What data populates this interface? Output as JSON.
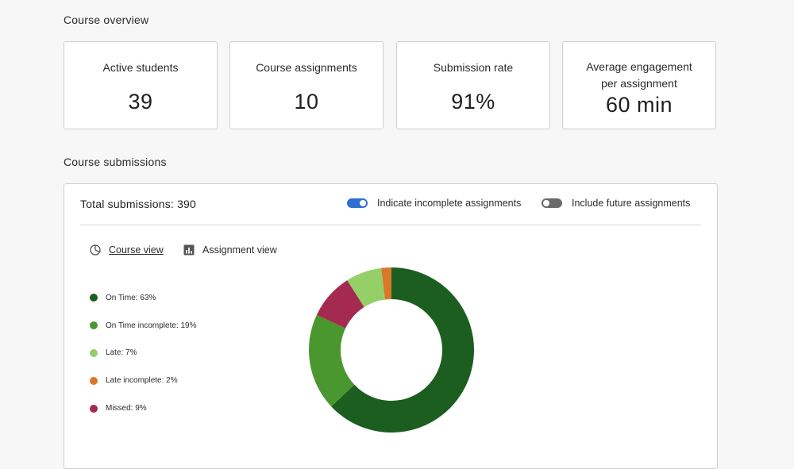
{
  "overview": {
    "title": "Course overview",
    "cards": [
      {
        "label": "Active students",
        "value": "39"
      },
      {
        "label": "Course assignments",
        "value": "10"
      },
      {
        "label": "Submission rate",
        "value": "91%"
      },
      {
        "label_line1": "Average engagement",
        "label_line2": "per assignment",
        "value": "60 min"
      }
    ]
  },
  "submissions": {
    "title": "Course submissions",
    "total": "Total submissions: 390",
    "toggles": [
      {
        "label": "Indicate incomplete assignments",
        "state": "on"
      },
      {
        "label": "Include future assignments",
        "state": "off"
      }
    ],
    "views": [
      {
        "label": "Course view",
        "icon": "pie-chart-icon",
        "active": true
      },
      {
        "label": "Assignment view",
        "icon": "bar-chart-icon",
        "active": false
      }
    ],
    "legend": [
      {
        "label": "On Time: 63%"
      },
      {
        "label": "On Time incomplete: 19%"
      },
      {
        "label": "Late: 7%"
      },
      {
        "label": "Late incomplete: 2%"
      },
      {
        "label": "Missed: 9%"
      }
    ]
  },
  "colors": {
    "toggle_on": "#2f6fd0",
    "toggle_off": "#6b6b6b"
  },
  "chart_data": {
    "type": "pie",
    "style": "donut",
    "categories": [
      "On Time",
      "On Time incomplete",
      "Late",
      "Late incomplete",
      "Missed"
    ],
    "values": [
      63,
      19,
      7,
      2,
      9
    ],
    "colors": [
      "#1b5e20",
      "#4a972f",
      "#95cf67",
      "#d9782a",
      "#a52a50"
    ],
    "start": "top",
    "direction": "clockwise",
    "segment_order": [
      0,
      1,
      4,
      2,
      3
    ],
    "legend_placement": "left"
  }
}
